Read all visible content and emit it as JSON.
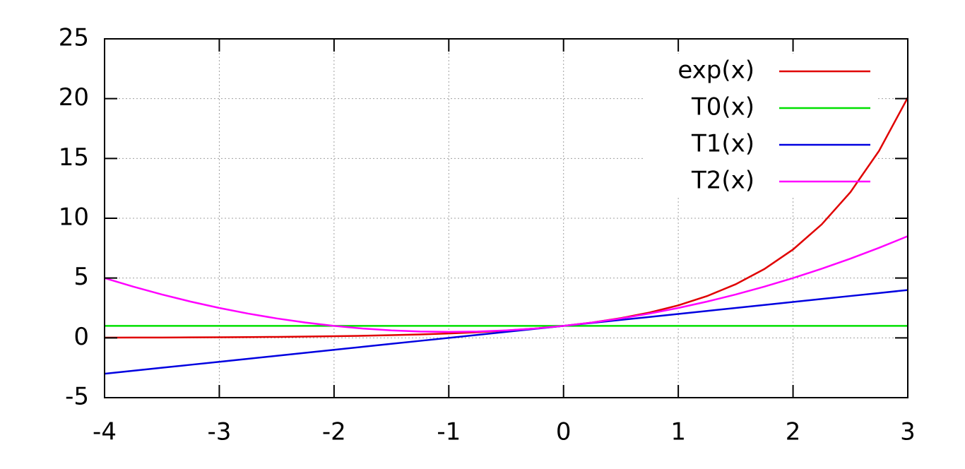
{
  "chart_data": {
    "type": "line",
    "x": [
      -4,
      -3.75,
      -3.5,
      -3.25,
      -3,
      -2.75,
      -2.5,
      -2.25,
      -2,
      -1.75,
      -1.5,
      -1.25,
      -1,
      -0.75,
      -0.5,
      -0.25,
      0,
      0.25,
      0.5,
      0.75,
      1,
      1.25,
      1.5,
      1.75,
      2,
      2.25,
      2.5,
      2.75,
      3
    ],
    "series": [
      {
        "name": "exp(x)",
        "color": "#e00000",
        "values": [
          0.018,
          0.024,
          0.03,
          0.039,
          0.05,
          0.064,
          0.082,
          0.105,
          0.135,
          0.174,
          0.223,
          0.287,
          0.368,
          0.472,
          0.607,
          0.779,
          1,
          1.284,
          1.649,
          2.117,
          2.718,
          3.49,
          4.482,
          5.755,
          7.389,
          9.488,
          12.182,
          15.643,
          20.086
        ]
      },
      {
        "name": "T0(x)",
        "color": "#00e000",
        "values": [
          1,
          1,
          1,
          1,
          1,
          1,
          1,
          1,
          1,
          1,
          1,
          1,
          1,
          1,
          1,
          1,
          1,
          1,
          1,
          1,
          1,
          1,
          1,
          1,
          1,
          1,
          1,
          1,
          1
        ]
      },
      {
        "name": "T1(x)",
        "color": "#0000e0",
        "values": [
          -3,
          -2.75,
          -2.5,
          -2.25,
          -2,
          -1.75,
          -1.5,
          -1.25,
          -1,
          -0.75,
          -0.5,
          -0.25,
          0,
          0.25,
          0.5,
          0.75,
          1,
          1.25,
          1.5,
          1.75,
          2,
          2.25,
          2.5,
          2.75,
          3,
          3.25,
          3.5,
          3.75,
          4
        ]
      },
      {
        "name": "T2(x)",
        "color": "#ff00ff",
        "values": [
          5,
          4.281,
          3.625,
          3.031,
          2.5,
          2.031,
          1.625,
          1.281,
          1,
          0.781,
          0.625,
          0.531,
          0.5,
          0.531,
          0.625,
          0.781,
          1,
          1.281,
          1.625,
          2.031,
          2.5,
          3.031,
          3.625,
          4.281,
          5,
          5.781,
          6.625,
          7.531,
          8.5
        ]
      }
    ],
    "xlim": [
      -4,
      3
    ],
    "xticks": [
      -4,
      -3,
      -2,
      -1,
      0,
      1,
      2,
      3
    ],
    "ylim": [
      -5,
      25
    ],
    "yticks": [
      -5,
      0,
      5,
      10,
      15,
      20,
      25
    ],
    "grid": true,
    "legend": "top-right"
  }
}
